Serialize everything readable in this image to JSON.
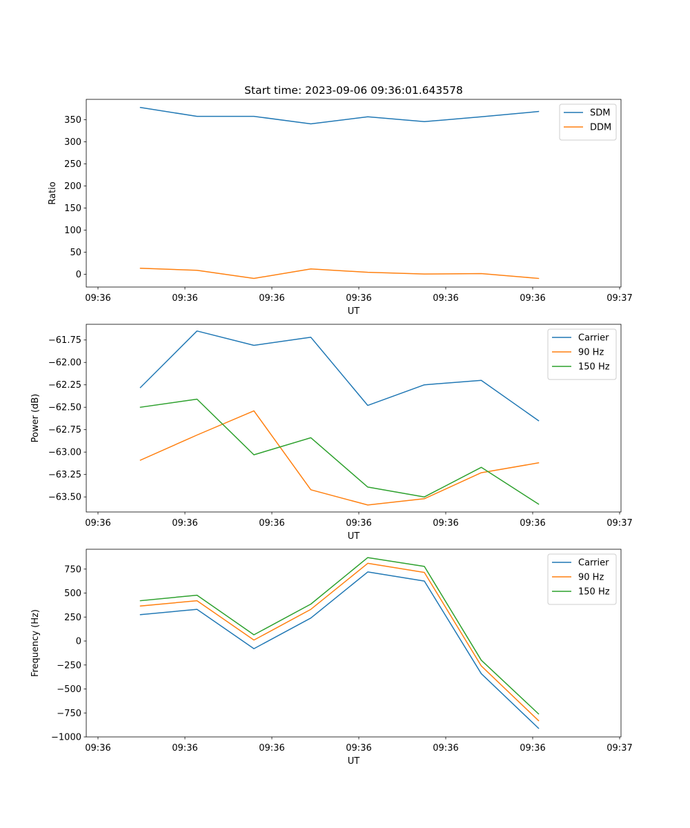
{
  "chart_data": [
    {
      "type": "line",
      "title": "Start time: 2023-09-06 09:36:01.643578",
      "xlabel": "UT",
      "ylabel": "Ratio",
      "x_tick_labels": [
        "09:36",
        "09:36",
        "09:36",
        "09:36",
        "09:36",
        "09:36",
        "09:36"
      ],
      "x_tick_last": "09:37",
      "y_ticks": [
        0,
        50,
        100,
        150,
        200,
        250,
        300,
        350
      ],
      "ylim": [
        -29,
        396
      ],
      "legend_position": "top-right",
      "series": [
        {
          "name": "SDM",
          "color": "#1f77b4",
          "values": [
            377.5,
            357.5,
            357.5,
            340.5,
            356.5,
            345.5,
            356.5,
            368.5
          ]
        },
        {
          "name": "DDM",
          "color": "#ff7f0e",
          "values": [
            13.5,
            9,
            -9.5,
            12,
            4.5,
            0.5,
            1.5,
            -9.5
          ]
        }
      ]
    },
    {
      "type": "line",
      "title": "",
      "xlabel": "UT",
      "ylabel": "Power (dB)",
      "x_tick_labels": [
        "09:36",
        "09:36",
        "09:36",
        "09:36",
        "09:36",
        "09:36",
        "09:36"
      ],
      "x_tick_last": "09:37",
      "y_ticks": [
        -63.5,
        -63.25,
        -63.0,
        -62.75,
        -62.5,
        -62.25,
        -62.0,
        -61.75
      ],
      "y_tick_labels": [
        "−63.50",
        "−63.25",
        "−63.00",
        "−62.75",
        "−62.50",
        "−62.25",
        "−62.00",
        "−61.75"
      ],
      "ylim": [
        -63.668,
        -61.575
      ],
      "legend_position": "top-right",
      "series": [
        {
          "name": "Carrier",
          "color": "#1f77b4",
          "values": [
            -62.28,
            -61.65,
            -61.81,
            -61.72,
            -62.48,
            -62.25,
            -62.2,
            -62.65
          ]
        },
        {
          "name": "90 Hz",
          "color": "#ff7f0e",
          "values": [
            -63.09,
            -62.81,
            -62.54,
            -63.42,
            -63.59,
            -63.52,
            -63.23,
            -63.12
          ]
        },
        {
          "name": "150 Hz",
          "color": "#2ca02c",
          "values": [
            -62.5,
            -62.41,
            -63.03,
            -62.84,
            -63.39,
            -63.5,
            -63.17,
            -63.58
          ]
        }
      ]
    },
    {
      "type": "line",
      "title": "",
      "xlabel": "UT",
      "ylabel": "Frequency (Hz)",
      "x_tick_labels": [
        "09:36",
        "09:36",
        "09:36",
        "09:36",
        "09:36",
        "09:36",
        "09:36"
      ],
      "x_tick_last": "09:37",
      "y_ticks": [
        -1000,
        -750,
        -500,
        -250,
        0,
        250,
        500,
        750
      ],
      "y_tick_labels": [
        "−1000",
        "−750",
        "−500",
        "−250",
        "0",
        "250",
        "500",
        "750"
      ],
      "ylim": [
        -1000,
        957
      ],
      "legend_position": "top-right",
      "series": [
        {
          "name": "Carrier",
          "color": "#1f77b4",
          "values": [
            275,
            330,
            -80,
            240,
            720,
            625,
            -340,
            -910
          ]
        },
        {
          "name": "90 Hz",
          "color": "#ff7f0e",
          "values": [
            365,
            420,
            10,
            330,
            810,
            715,
            -260,
            -830
          ]
        },
        {
          "name": "150 Hz",
          "color": "#2ca02c",
          "values": [
            420,
            478,
            65,
            385,
            870,
            778,
            -200,
            -760
          ]
        }
      ]
    }
  ]
}
